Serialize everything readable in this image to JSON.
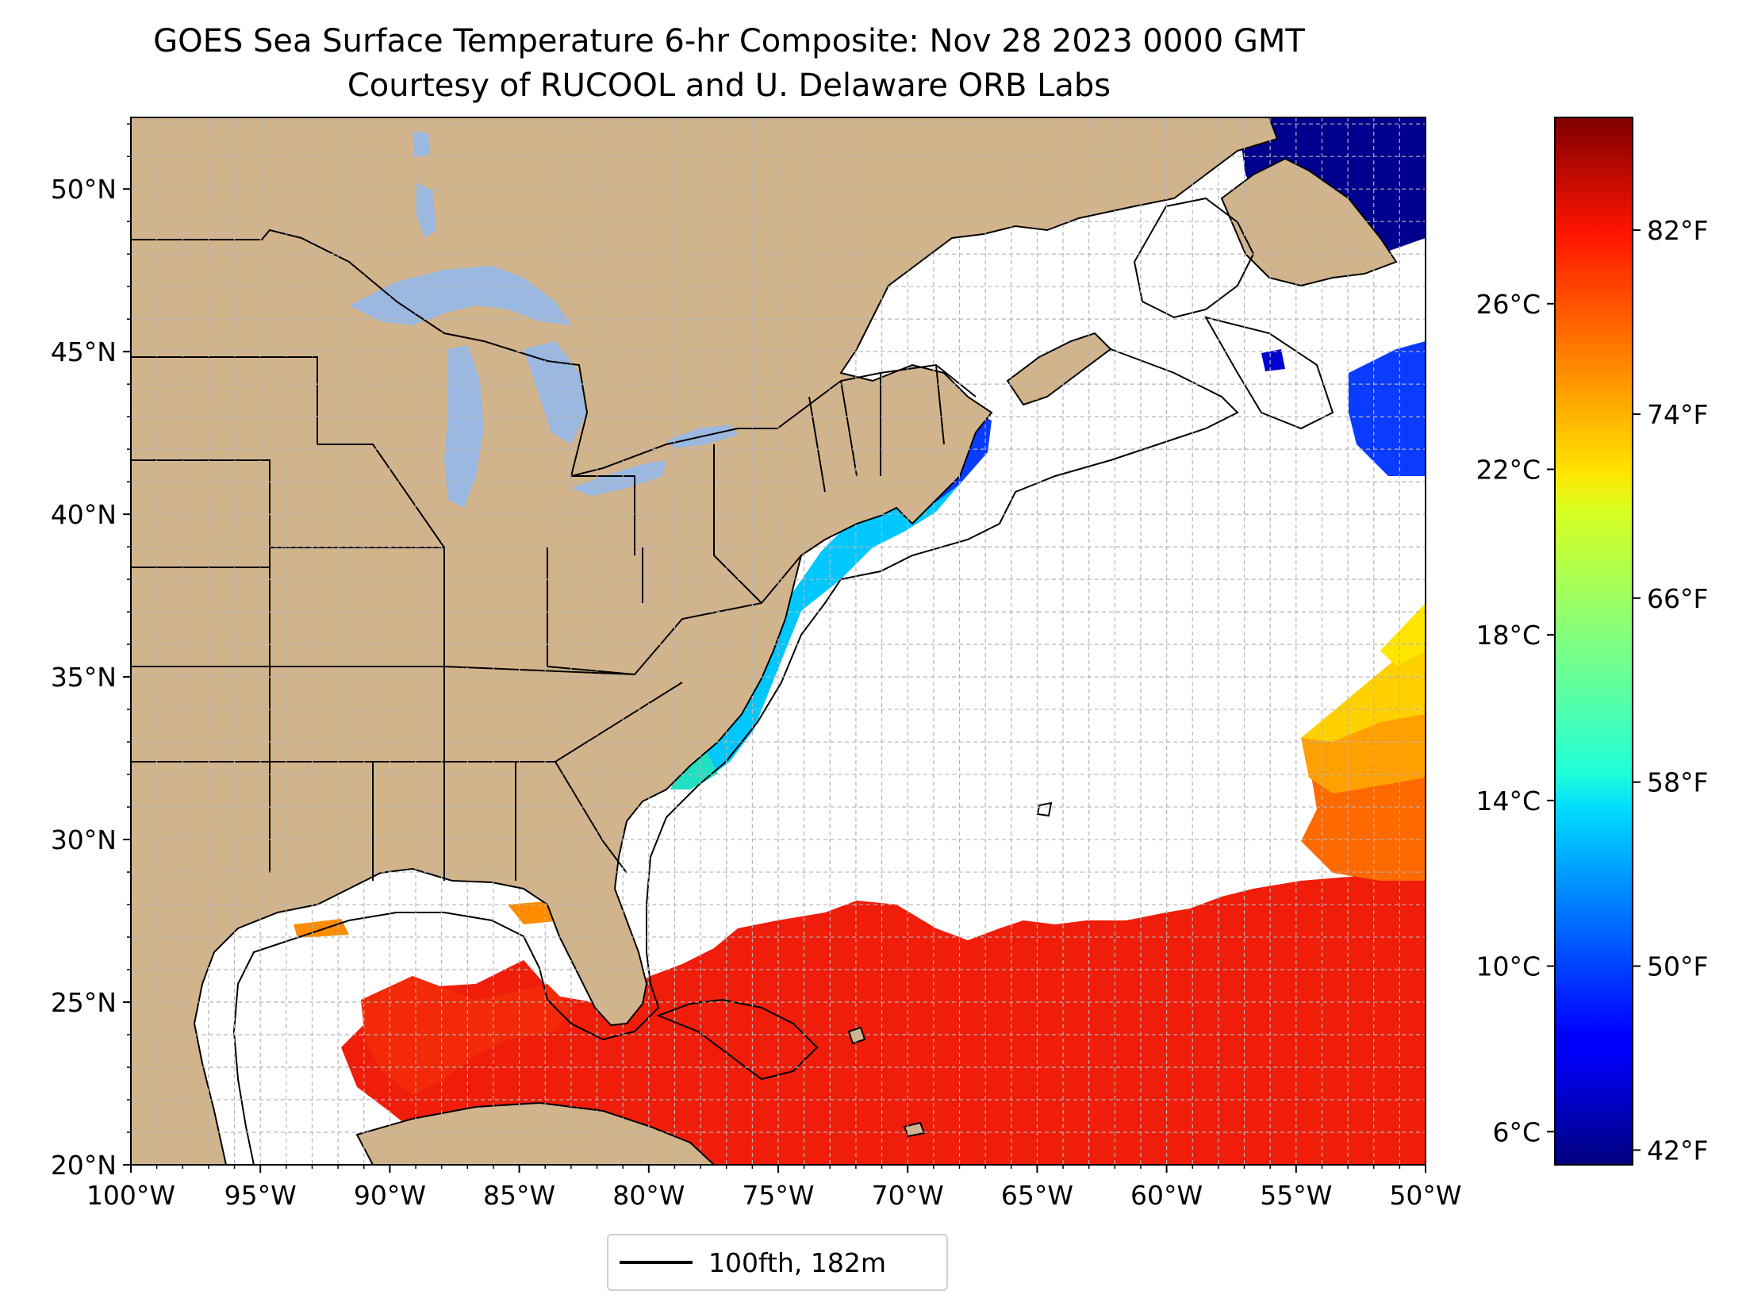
{
  "title": {
    "line1": "GOES Sea Surface Temperature 6-hr Composite: Nov 28 2023 0000 GMT",
    "line2": "Courtesy of RUCOOL and U. Delaware ORB Labs"
  },
  "map": {
    "lon_range": [
      -100,
      -50
    ],
    "lat_range": [
      20,
      52.2
    ],
    "x_ticks": [
      {
        "lon": -100,
        "label": "100°W"
      },
      {
        "lon": -95,
        "label": "95°W"
      },
      {
        "lon": -90,
        "label": "90°W"
      },
      {
        "lon": -85,
        "label": "85°W"
      },
      {
        "lon": -80,
        "label": "80°W"
      },
      {
        "lon": -75,
        "label": "75°W"
      },
      {
        "lon": -70,
        "label": "70°W"
      },
      {
        "lon": -65,
        "label": "65°W"
      },
      {
        "lon": -60,
        "label": "60°W"
      },
      {
        "lon": -55,
        "label": "55°W"
      },
      {
        "lon": -50,
        "label": "50°W"
      }
    ],
    "y_ticks": [
      {
        "lat": 20,
        "label": "20°N"
      },
      {
        "lat": 25,
        "label": "25°N"
      },
      {
        "lat": 30,
        "label": "30°N"
      },
      {
        "lat": 35,
        "label": "35°N"
      },
      {
        "lat": 40,
        "label": "40°N"
      },
      {
        "lat": 45,
        "label": "45°N"
      },
      {
        "lat": 50,
        "label": "50°N"
      }
    ],
    "grid": true,
    "colors": {
      "land": "#d2b48c",
      "lakes": "#9ab8e0",
      "ocean_nodata": "#ffffff",
      "grid": "#b4b4b4",
      "coastline": "#000000"
    }
  },
  "legend": {
    "label": "100fth, 182m",
    "placement": "bottom-center"
  },
  "colorbar": {
    "colormap": "jet",
    "range_c": [
      5.2,
      30.5
    ],
    "celsius_ticks": [
      {
        "value": 6,
        "label": "6°C"
      },
      {
        "value": 10,
        "label": "10°C"
      },
      {
        "value": 14,
        "label": "14°C"
      },
      {
        "value": 18,
        "label": "18°C"
      },
      {
        "value": 22,
        "label": "22°C"
      },
      {
        "value": 26,
        "label": "26°C"
      }
    ],
    "fahrenheit_ticks": [
      {
        "value": 42,
        "label": "42°F"
      },
      {
        "value": 50,
        "label": "50°F"
      },
      {
        "value": 58,
        "label": "58°F"
      },
      {
        "value": 66,
        "label": "66°F"
      },
      {
        "value": 74,
        "label": "74°F"
      },
      {
        "value": 82,
        "label": "82°F"
      }
    ]
  }
}
